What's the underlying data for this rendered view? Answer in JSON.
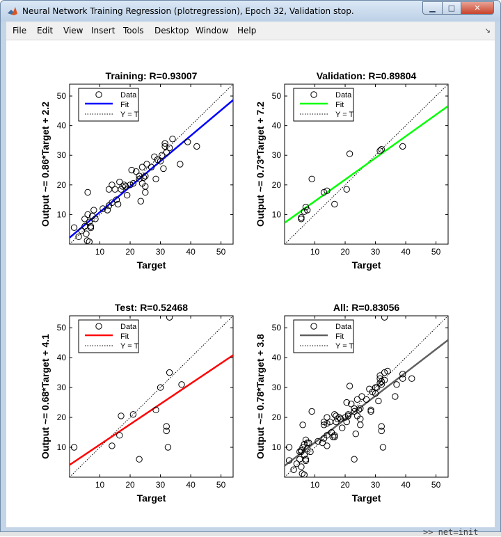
{
  "window": {
    "title": "Neural Network Training Regression (plotregression), Epoch 32, Validation stop.",
    "controls": {
      "minimize": "▁",
      "maximize": "□",
      "close": "✕"
    }
  },
  "menu": {
    "items": [
      "File",
      "Edit",
      "View",
      "Insert",
      "Tools",
      "Desktop",
      "Window",
      "Help"
    ],
    "dock_arrow": "↘"
  },
  "background_snippet": ">> net=init",
  "chart_data": [
    {
      "type": "scatter",
      "title": "Training: R=0.93007",
      "xlabel": "Target",
      "ylabel": "Output ~= 0.86*Target + 2.2",
      "xlim": [
        0,
        54
      ],
      "ylim": [
        0,
        54
      ],
      "xticks": [
        10,
        20,
        30,
        40,
        50
      ],
      "yticks": [
        10,
        20,
        30,
        40,
        50
      ],
      "fit": {
        "slope": 0.86,
        "intercept": 2.2,
        "color": "#0000ff"
      },
      "legend": {
        "placement": "top-left",
        "entries": [
          "Data",
          "Fit",
          "Y = T"
        ]
      },
      "points": [
        [
          1.5,
          5.6
        ],
        [
          3.0,
          2.5
        ],
        [
          4.0,
          4.5
        ],
        [
          5.0,
          6.0
        ],
        [
          5.0,
          8.5
        ],
        [
          5.5,
          3.5
        ],
        [
          5.8,
          1.2
        ],
        [
          6.0,
          17.5
        ],
        [
          6.0,
          10.0
        ],
        [
          6.5,
          0.8
        ],
        [
          6.5,
          7.5
        ],
        [
          7.0,
          6.0
        ],
        [
          7.0,
          5.5
        ],
        [
          7.5,
          9.5
        ],
        [
          8.0,
          11.5
        ],
        [
          8.5,
          8.5
        ],
        [
          11.0,
          12.0
        ],
        [
          12.5,
          11.5
        ],
        [
          13.0,
          13.0
        ],
        [
          13.0,
          18.5
        ],
        [
          14.0,
          14.0
        ],
        [
          14.0,
          20.0
        ],
        [
          15.0,
          18.5
        ],
        [
          15.5,
          15.0
        ],
        [
          16.0,
          13.5
        ],
        [
          16.5,
          21.0
        ],
        [
          17.0,
          18.5
        ],
        [
          17.5,
          19.5
        ],
        [
          18.0,
          20.0
        ],
        [
          18.5,
          19.5
        ],
        [
          19.0,
          16.5
        ],
        [
          20.0,
          20.0
        ],
        [
          20.5,
          25.0
        ],
        [
          21.0,
          20.5
        ],
        [
          22.0,
          24.5
        ],
        [
          23.0,
          22.0
        ],
        [
          23.0,
          23.0
        ],
        [
          23.5,
          14.5
        ],
        [
          24.0,
          26.0
        ],
        [
          24.0,
          20.5
        ],
        [
          24.5,
          22.5
        ],
        [
          25.0,
          17.5
        ],
        [
          25.0,
          19.5
        ],
        [
          25.0,
          23.0
        ],
        [
          25.5,
          27.0
        ],
        [
          27.0,
          26.0
        ],
        [
          28.0,
          29.5
        ],
        [
          28.5,
          22.0
        ],
        [
          29.0,
          28.5
        ],
        [
          30.0,
          28.0
        ],
        [
          30.5,
          30.0
        ],
        [
          31.0,
          25.5
        ],
        [
          31.5,
          33.0
        ],
        [
          31.5,
          34.0
        ],
        [
          32.0,
          31.0
        ],
        [
          33.0,
          32.5
        ],
        [
          34.0,
          35.5
        ],
        [
          36.5,
          27.0
        ],
        [
          39.0,
          34.5
        ],
        [
          42.0,
          33.0
        ]
      ]
    },
    {
      "type": "scatter",
      "title": "Validation: R=0.89804",
      "xlabel": "Target",
      "ylabel": "Output ~= 0.73*Target + 7.2",
      "xlim": [
        0,
        54
      ],
      "ylim": [
        0,
        54
      ],
      "xticks": [
        10,
        20,
        30,
        40,
        50
      ],
      "yticks": [
        10,
        20,
        30,
        40,
        50
      ],
      "fit": {
        "slope": 0.73,
        "intercept": 7.2,
        "color": "#00ff00"
      },
      "legend": {
        "placement": "top-left",
        "entries": [
          "Data",
          "Fit",
          "Y = T"
        ]
      },
      "points": [
        [
          5.5,
          8.5
        ],
        [
          5.5,
          9.0
        ],
        [
          6.5,
          11.0
        ],
        [
          7.0,
          12.5
        ],
        [
          7.5,
          11.5
        ],
        [
          9.0,
          22.0
        ],
        [
          13.0,
          17.5
        ],
        [
          14.0,
          18.0
        ],
        [
          16.5,
          13.5
        ],
        [
          20.5,
          18.5
        ],
        [
          21.5,
          30.5
        ],
        [
          31.5,
          31.5
        ],
        [
          32.0,
          32.0
        ],
        [
          39.0,
          33.0
        ]
      ]
    },
    {
      "type": "scatter",
      "title": "Test: R=0.52468",
      "xlabel": "Target",
      "ylabel": "Output ~= 0.68*Target + 4.1",
      "xlim": [
        0,
        54
      ],
      "ylim": [
        0,
        54
      ],
      "xticks": [
        10,
        20,
        30,
        40,
        50
      ],
      "yticks": [
        10,
        20,
        30,
        40,
        50
      ],
      "fit": {
        "slope": 0.68,
        "intercept": 4.1,
        "color": "#ff0000"
      },
      "legend": {
        "placement": "top-left",
        "entries": [
          "Data",
          "Fit",
          "Y = T"
        ]
      },
      "points": [
        [
          1.5,
          10.0
        ],
        [
          14.0,
          10.5
        ],
        [
          16.5,
          14.0
        ],
        [
          17.0,
          20.5
        ],
        [
          21.0,
          21.0
        ],
        [
          23.0,
          6.0
        ],
        [
          28.5,
          22.5
        ],
        [
          30.0,
          30.0
        ],
        [
          32.0,
          17.0
        ],
        [
          32.0,
          15.5
        ],
        [
          32.5,
          10.0
        ],
        [
          33.0,
          35.0
        ],
        [
          33.0,
          53.5
        ],
        [
          37.0,
          31.0
        ]
      ]
    },
    {
      "type": "scatter",
      "title": "All: R=0.83056",
      "xlabel": "Target",
      "ylabel": "Output ~= 0.78*Target + 3.8",
      "xlim": [
        0,
        54
      ],
      "ylim": [
        0,
        54
      ],
      "xticks": [
        10,
        20,
        30,
        40,
        50
      ],
      "yticks": [
        10,
        20,
        30,
        40,
        50
      ],
      "fit": {
        "slope": 0.78,
        "intercept": 3.8,
        "color": "#606060"
      },
      "legend": {
        "placement": "top-left",
        "entries": [
          "Data",
          "Fit",
          "Y = T"
        ]
      },
      "points": [
        [
          1.5,
          5.6
        ],
        [
          3.0,
          2.5
        ],
        [
          4.0,
          4.5
        ],
        [
          5.0,
          6.0
        ],
        [
          5.0,
          8.5
        ],
        [
          5.5,
          3.5
        ],
        [
          5.8,
          1.2
        ],
        [
          6.0,
          17.5
        ],
        [
          6.0,
          10.0
        ],
        [
          6.5,
          0.8
        ],
        [
          6.5,
          7.5
        ],
        [
          7.0,
          6.0
        ],
        [
          7.0,
          5.5
        ],
        [
          7.5,
          9.5
        ],
        [
          8.0,
          11.5
        ],
        [
          8.5,
          8.5
        ],
        [
          11.0,
          12.0
        ],
        [
          12.5,
          11.5
        ],
        [
          13.0,
          13.0
        ],
        [
          13.0,
          18.5
        ],
        [
          14.0,
          14.0
        ],
        [
          14.0,
          20.0
        ],
        [
          15.0,
          18.5
        ],
        [
          15.5,
          15.0
        ],
        [
          16.0,
          13.5
        ],
        [
          16.5,
          21.0
        ],
        [
          17.0,
          18.5
        ],
        [
          17.5,
          19.5
        ],
        [
          18.0,
          20.0
        ],
        [
          18.5,
          19.5
        ],
        [
          19.0,
          16.5
        ],
        [
          20.0,
          20.0
        ],
        [
          20.5,
          25.0
        ],
        [
          21.0,
          20.5
        ],
        [
          22.0,
          24.5
        ],
        [
          23.0,
          22.0
        ],
        [
          23.0,
          23.0
        ],
        [
          23.5,
          14.5
        ],
        [
          24.0,
          26.0
        ],
        [
          24.0,
          20.5
        ],
        [
          24.5,
          22.5
        ],
        [
          25.0,
          17.5
        ],
        [
          25.0,
          19.5
        ],
        [
          25.0,
          23.0
        ],
        [
          25.5,
          27.0
        ],
        [
          27.0,
          26.0
        ],
        [
          28.0,
          29.5
        ],
        [
          28.5,
          22.0
        ],
        [
          29.0,
          28.5
        ],
        [
          30.0,
          28.0
        ],
        [
          30.5,
          30.0
        ],
        [
          31.0,
          25.5
        ],
        [
          31.5,
          33.0
        ],
        [
          31.5,
          34.0
        ],
        [
          32.0,
          31.0
        ],
        [
          33.0,
          32.5
        ],
        [
          34.0,
          35.5
        ],
        [
          36.5,
          27.0
        ],
        [
          39.0,
          34.5
        ],
        [
          42.0,
          33.0
        ],
        [
          5.5,
          8.5
        ],
        [
          5.5,
          9.0
        ],
        [
          6.5,
          11.0
        ],
        [
          7.0,
          12.5
        ],
        [
          7.5,
          11.5
        ],
        [
          9.0,
          22.0
        ],
        [
          13.0,
          17.5
        ],
        [
          14.0,
          18.0
        ],
        [
          16.5,
          13.5
        ],
        [
          20.5,
          18.5
        ],
        [
          21.5,
          30.5
        ],
        [
          31.5,
          31.5
        ],
        [
          32.0,
          32.0
        ],
        [
          39.0,
          33.0
        ],
        [
          1.5,
          10.0
        ],
        [
          14.0,
          10.5
        ],
        [
          16.5,
          14.0
        ],
        [
          17.0,
          20.5
        ],
        [
          21.0,
          21.0
        ],
        [
          23.0,
          6.0
        ],
        [
          28.5,
          22.5
        ],
        [
          30.0,
          30.0
        ],
        [
          32.0,
          17.0
        ],
        [
          32.0,
          15.5
        ],
        [
          32.5,
          10.0
        ],
        [
          33.0,
          35.0
        ],
        [
          33.0,
          53.5
        ],
        [
          37.0,
          31.0
        ]
      ]
    }
  ]
}
